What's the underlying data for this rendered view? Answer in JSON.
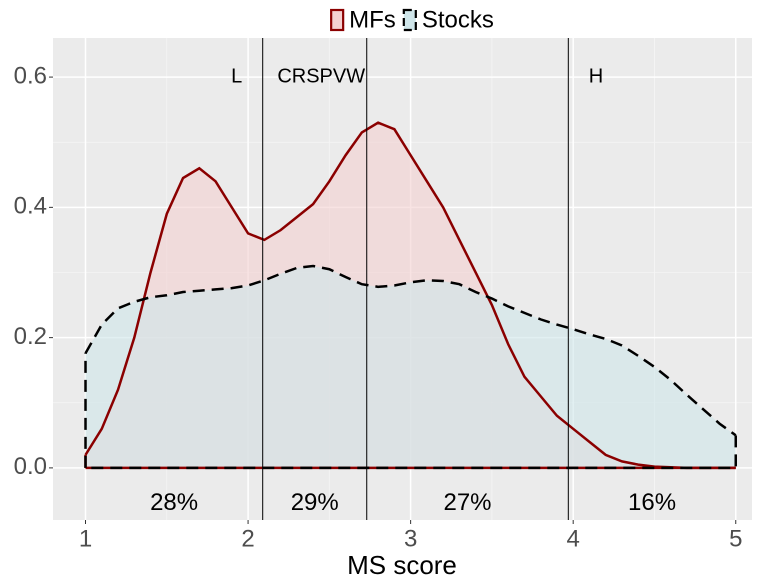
{
  "chart_data": {
    "type": "density",
    "x_label": "MS score",
    "x": [
      1.0,
      1.1,
      1.2,
      1.3,
      1.4,
      1.5,
      1.6,
      1.7,
      1.8,
      1.9,
      2.0,
      2.1,
      2.2,
      2.3,
      2.4,
      2.5,
      2.6,
      2.7,
      2.8,
      2.9,
      3.0,
      3.1,
      3.2,
      3.3,
      3.4,
      3.5,
      3.6,
      3.7,
      3.8,
      3.9,
      4.0,
      4.1,
      4.2,
      4.3,
      4.4,
      4.5,
      4.6,
      4.7,
      4.8,
      4.9,
      5.0
    ],
    "series": [
      {
        "name": "MFs",
        "color": "#8b0000",
        "fill": "#f4d0d0",
        "dashed": false,
        "values": [
          0.02,
          0.06,
          0.12,
          0.2,
          0.3,
          0.39,
          0.445,
          0.46,
          0.44,
          0.4,
          0.36,
          0.35,
          0.365,
          0.385,
          0.405,
          0.44,
          0.48,
          0.515,
          0.53,
          0.52,
          0.48,
          0.44,
          0.4,
          0.35,
          0.3,
          0.25,
          0.19,
          0.14,
          0.11,
          0.08,
          0.06,
          0.04,
          0.02,
          0.01,
          0.005,
          0.002,
          0.001,
          0,
          0,
          0,
          0
        ]
      },
      {
        "name": "Stocks",
        "color": "#000000",
        "fill": "#cfe6ea",
        "dashed": true,
        "values": [
          0.176,
          0.22,
          0.245,
          0.255,
          0.262,
          0.265,
          0.27,
          0.272,
          0.274,
          0.276,
          0.28,
          0.288,
          0.298,
          0.307,
          0.31,
          0.305,
          0.293,
          0.282,
          0.278,
          0.28,
          0.285,
          0.288,
          0.287,
          0.282,
          0.27,
          0.26,
          0.248,
          0.238,
          0.228,
          0.22,
          0.213,
          0.205,
          0.198,
          0.188,
          0.172,
          0.155,
          0.135,
          0.112,
          0.09,
          0.068,
          0.05
        ]
      }
    ],
    "vlines": [
      2.09,
      2.73,
      3.97
    ],
    "annotations": [
      {
        "text": "L",
        "x": 1.93,
        "y": 0.6
      },
      {
        "text": "CRSPVW",
        "x": 2.45,
        "y": 0.6
      },
      {
        "text": "H",
        "x": 4.14,
        "y": 0.6
      }
    ],
    "segment_shares": {
      "values": [
        28,
        29,
        27,
        16
      ],
      "value_labels": [
        "28%",
        "29%",
        "27%",
        "16%"
      ],
      "y": -0.055
    },
    "xlim": [
      0.8,
      5.1
    ],
    "ylim": [
      -0.08,
      0.66
    ],
    "xticks": [
      1,
      2,
      3,
      4,
      5
    ],
    "yticks": [
      {
        "value": 0,
        "label": "0.0"
      },
      {
        "value": 0.2,
        "label": "0.2"
      },
      {
        "value": 0.4,
        "label": "0.4"
      },
      {
        "value": 0.6,
        "label": "0.6"
      }
    ],
    "grid": true,
    "legend": "top"
  }
}
